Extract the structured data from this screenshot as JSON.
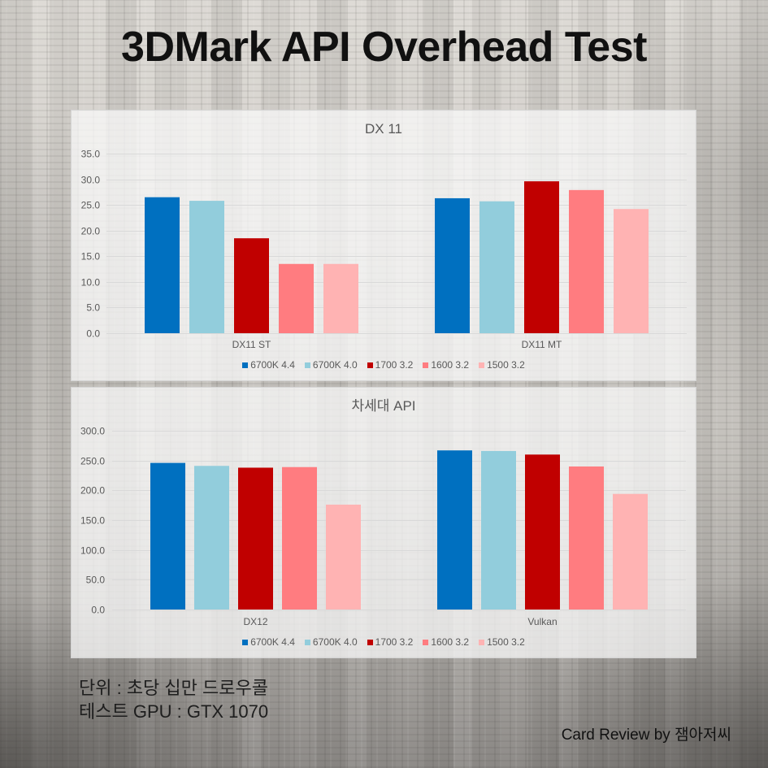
{
  "title": "3DMark API Overhead Test",
  "chart_data": [
    {
      "type": "bar",
      "title": "DX 11",
      "categories": [
        "DX11 ST",
        "DX11 MT"
      ],
      "series": [
        {
          "name": "6700K 4.4",
          "color": "#0070C0",
          "values": [
            26.5,
            26.3
          ]
        },
        {
          "name": "6700K 4.0",
          "color": "#92CDDC",
          "values": [
            25.8,
            25.7
          ]
        },
        {
          "name": "1700 3.2",
          "color": "#C00000",
          "values": [
            18.5,
            29.6
          ]
        },
        {
          "name": "1600 3.2",
          "color": "#FF7C80",
          "values": [
            13.5,
            27.9
          ]
        },
        {
          "name": "1500 3.2",
          "color": "#FFB3B3",
          "values": [
            13.5,
            24.2
          ]
        }
      ],
      "ylim": [
        0,
        35
      ],
      "yticks": [
        "0.0",
        "5.0",
        "10.0",
        "15.0",
        "20.0",
        "25.0",
        "30.0",
        "35.0"
      ],
      "grid": true,
      "legend": "bottom"
    },
    {
      "type": "bar",
      "title": "차세대 API",
      "categories": [
        "DX12",
        "Vulkan"
      ],
      "series": [
        {
          "name": "6700K 4.4",
          "color": "#0070C0",
          "values": [
            246,
            267
          ]
        },
        {
          "name": "6700K 4.0",
          "color": "#92CDDC",
          "values": [
            241,
            266
          ]
        },
        {
          "name": "1700 3.2",
          "color": "#C00000",
          "values": [
            238,
            260
          ]
        },
        {
          "name": "1600 3.2",
          "color": "#FF7C80",
          "values": [
            239,
            240
          ]
        },
        {
          "name": "1500 3.2",
          "color": "#FFB3B3",
          "values": [
            176,
            194
          ]
        }
      ],
      "ylim": [
        0,
        300
      ],
      "yticks": [
        "0.0",
        "50.0",
        "100.0",
        "150.0",
        "200.0",
        "250.0",
        "300.0"
      ],
      "grid": true,
      "legend": "bottom"
    }
  ],
  "notes": {
    "unit": "단위 : 초당 십만 드로우콜",
    "test_gpu": "테스트 GPU : GTX 1070"
  },
  "credit": "Card Review by 잼아저씨"
}
